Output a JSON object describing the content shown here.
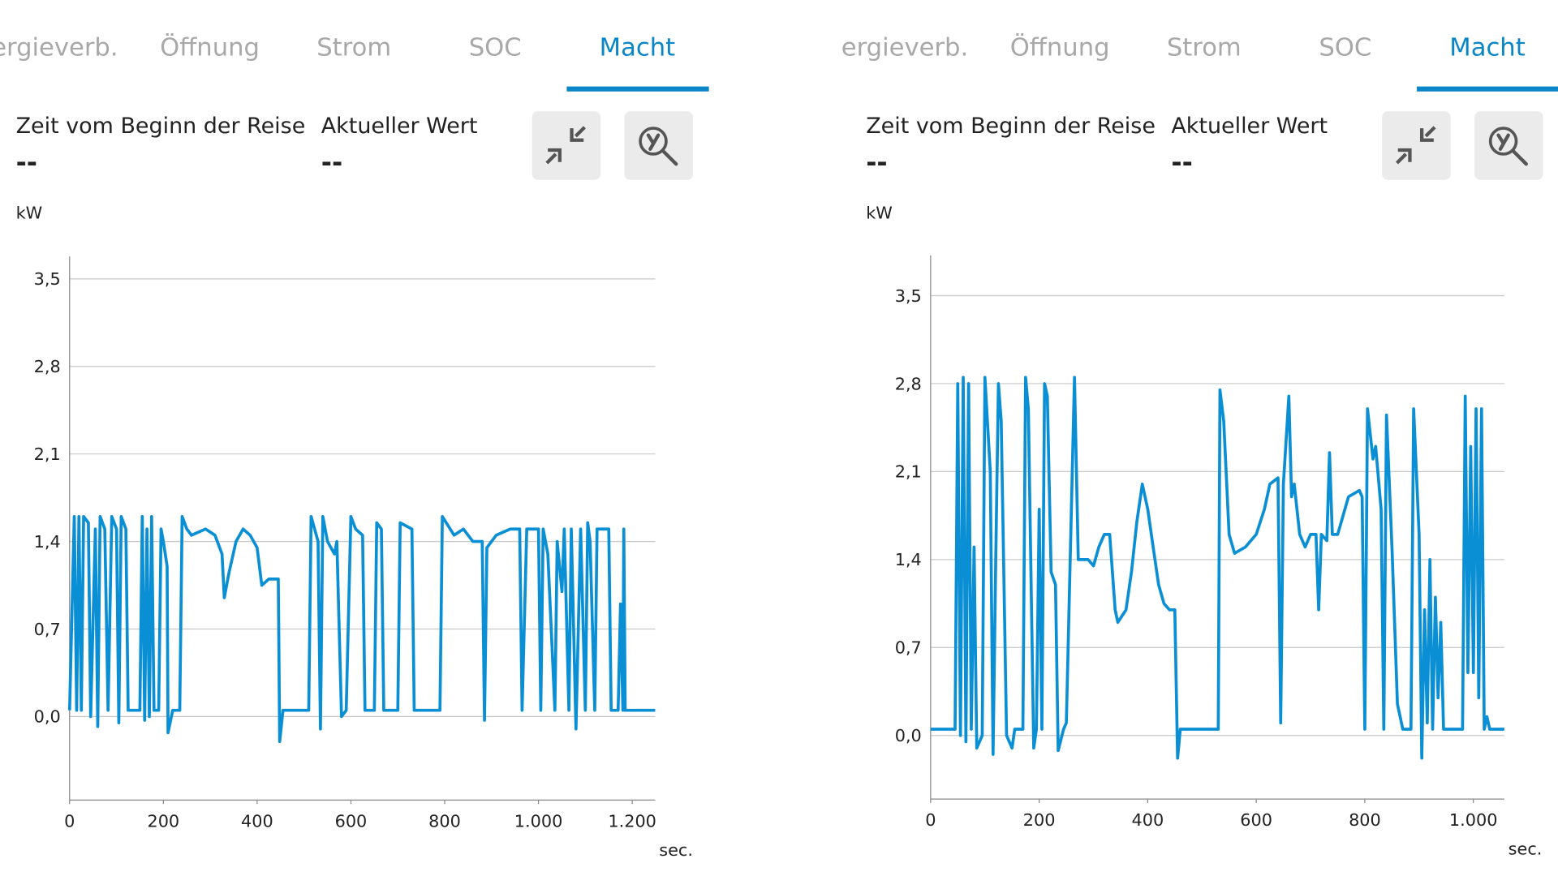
{
  "panels": [
    {
      "tabs": [
        "ergieverb.",
        "Öffnung",
        "Strom",
        "SOC",
        "Macht"
      ],
      "selected_tab": 4,
      "fields": [
        {
          "label": "Zeit vom Beginn der Reise",
          "value": "--"
        },
        {
          "label": "Aktueller Wert",
          "value": "--"
        }
      ]
    },
    {
      "tabs": [
        "ergieverb.",
        "Öffnung",
        "Strom",
        "SOC",
        "Macht"
      ],
      "selected_tab": 4,
      "fields": [
        {
          "label": "Zeit vom Beginn der Reise",
          "value": "--"
        },
        {
          "label": "Aktueller Wert",
          "value": "--"
        }
      ]
    }
  ],
  "chart_data": [
    {
      "type": "line",
      "ylabel": "kW",
      "xlabel": "sec.",
      "color": "#0a8fd4",
      "grid": true,
      "xlim": [
        0,
        1249
      ],
      "ylim": [
        -0.668,
        3.68
      ],
      "xticks": [
        0,
        200,
        400,
        600,
        800,
        {
          "value": 1000,
          "label": "1.000"
        },
        {
          "value": 1200,
          "label": "1.200"
        }
      ],
      "yticks": [
        {
          "value": 0,
          "label": "0,0"
        },
        {
          "value": 0.7,
          "label": "0,7"
        },
        {
          "value": 1.4,
          "label": "1,4"
        },
        {
          "value": 2.1,
          "label": "2,1"
        },
        {
          "value": 2.8,
          "label": "2,8"
        },
        {
          "value": 3.5,
          "label": "3,5"
        }
      ],
      "x": [
        0,
        10,
        15,
        20,
        25,
        30,
        40,
        45,
        55,
        60,
        65,
        75,
        82,
        90,
        100,
        105,
        110,
        120,
        125,
        150,
        155,
        160,
        165,
        170,
        175,
        180,
        190,
        195,
        200,
        208,
        210,
        220,
        235,
        240,
        250,
        260,
        290,
        310,
        325,
        330,
        340,
        355,
        370,
        385,
        400,
        410,
        425,
        445,
        448,
        455,
        510,
        515,
        530,
        535,
        540,
        550,
        565,
        570,
        580,
        590,
        600,
        610,
        625,
        630,
        650,
        655,
        665,
        670,
        700,
        705,
        730,
        735,
        790,
        795,
        820,
        840,
        860,
        880,
        885,
        890,
        910,
        940,
        960,
        965,
        975,
        1000,
        1005,
        1010,
        1020,
        1035,
        1040,
        1050,
        1055,
        1065,
        1070,
        1080,
        1090,
        1100,
        1105,
        1110,
        1120,
        1125,
        1150,
        1155,
        1170,
        1175,
        1180,
        1182,
        1185,
        1249
      ],
      "values": [
        0.05,
        1.6,
        0.05,
        1.6,
        0.05,
        1.6,
        1.55,
        0,
        1.5,
        -0.08,
        1.6,
        1.5,
        0.05,
        1.6,
        1.5,
        -0.05,
        1.6,
        1.5,
        0.05,
        0.05,
        1.6,
        -0.03,
        1.5,
        0,
        1.6,
        0.05,
        0.05,
        1.5,
        1.4,
        1.2,
        -0.13,
        0.05,
        0.05,
        1.6,
        1.5,
        1.45,
        1.5,
        1.45,
        1.3,
        0.95,
        1.15,
        1.4,
        1.5,
        1.45,
        1.35,
        1.05,
        1.1,
        1.1,
        -0.2,
        0.05,
        0.05,
        1.6,
        1.4,
        -0.1,
        1.6,
        1.4,
        1.3,
        1.4,
        0,
        0.05,
        1.6,
        1.5,
        1.45,
        0.05,
        0.05,
        1.55,
        1.5,
        0.05,
        0.05,
        1.55,
        1.5,
        0.05,
        0.05,
        1.6,
        1.45,
        1.5,
        1.4,
        1.4,
        -0.03,
        1.35,
        1.45,
        1.5,
        1.5,
        0.05,
        1.5,
        1.5,
        0.05,
        1.5,
        1.3,
        0.05,
        1.4,
        1,
        1.5,
        0.05,
        1.5,
        -0.1,
        1.5,
        0.05,
        1.55,
        1.4,
        0.05,
        1.5,
        1.5,
        0.05,
        0.05,
        0.9,
        0.05,
        1.5,
        0.05,
        0.05
      ]
    },
    {
      "type": "line",
      "ylabel": "kW",
      "xlabel": "sec.",
      "color": "#0a8fd4",
      "grid": true,
      "xlim": [
        0,
        1057
      ],
      "ylim": [
        -0.506,
        3.82
      ],
      "xticks": [
        0,
        200,
        400,
        600,
        800,
        {
          "value": 1000,
          "label": "1.000"
        }
      ],
      "yticks": [
        {
          "value": 0,
          "label": "0,0"
        },
        {
          "value": 0.7,
          "label": "0,7"
        },
        {
          "value": 1.4,
          "label": "1,4"
        },
        {
          "value": 2.1,
          "label": "2,1"
        },
        {
          "value": 2.8,
          "label": "2,8"
        },
        {
          "value": 3.5,
          "label": "3,5"
        }
      ],
      "x": [
        0,
        45,
        50,
        55,
        60,
        65,
        70,
        75,
        80,
        85,
        95,
        100,
        110,
        115,
        120,
        125,
        130,
        140,
        150,
        155,
        170,
        175,
        180,
        190,
        195,
        200,
        205,
        210,
        215,
        222,
        230,
        235,
        245,
        250,
        265,
        272,
        290,
        300,
        310,
        320,
        330,
        340,
        345,
        360,
        370,
        380,
        390,
        400,
        410,
        420,
        430,
        440,
        450,
        455,
        460,
        530,
        533,
        540,
        550,
        560,
        580,
        600,
        615,
        625,
        640,
        645,
        650,
        660,
        665,
        670,
        680,
        690,
        700,
        710,
        715,
        720,
        730,
        735,
        740,
        750,
        770,
        790,
        795,
        800,
        805,
        815,
        820,
        830,
        835,
        840,
        850,
        860,
        870,
        885,
        890,
        900,
        905,
        910,
        915,
        920,
        925,
        930,
        935,
        940,
        945,
        960,
        980,
        985,
        990,
        995,
        1000,
        1005,
        1010,
        1015,
        1020,
        1025,
        1030,
        1057
      ],
      "values": [
        0.05,
        0.05,
        2.8,
        0,
        2.85,
        -0.05,
        2.8,
        0.05,
        1.5,
        -0.1,
        0,
        2.85,
        2.1,
        -0.15,
        1.4,
        2.8,
        2.5,
        0,
        -0.1,
        0.05,
        0.05,
        2.85,
        2.6,
        -0.1,
        0.05,
        1.8,
        0.05,
        2.8,
        2.7,
        1.3,
        1.2,
        -0.12,
        0.05,
        0.1,
        2.85,
        1.4,
        1.4,
        1.35,
        1.5,
        1.6,
        1.6,
        1,
        0.9,
        1,
        1.3,
        1.7,
        2,
        1.8,
        1.5,
        1.2,
        1.05,
        1,
        1,
        -0.18,
        0.05,
        0.05,
        2.75,
        2.5,
        1.6,
        1.45,
        1.5,
        1.6,
        1.8,
        2,
        2.05,
        0.1,
        2,
        2.7,
        1.9,
        2,
        1.6,
        1.5,
        1.6,
        1.6,
        1,
        1.6,
        1.55,
        2.25,
        1.6,
        1.6,
        1.9,
        1.95,
        1.9,
        0.05,
        2.6,
        2.2,
        2.3,
        1.8,
        0.05,
        2.55,
        1.5,
        0.25,
        0.05,
        0.05,
        2.6,
        1.6,
        -0.18,
        1,
        0.1,
        1.4,
        0.05,
        1.1,
        0.3,
        0.9,
        0.05,
        0.05,
        0.05,
        2.7,
        0.5,
        2.3,
        0.5,
        2.6,
        0.3,
        2.6,
        0.05,
        0.15,
        0.05,
        0.05
      ]
    }
  ]
}
